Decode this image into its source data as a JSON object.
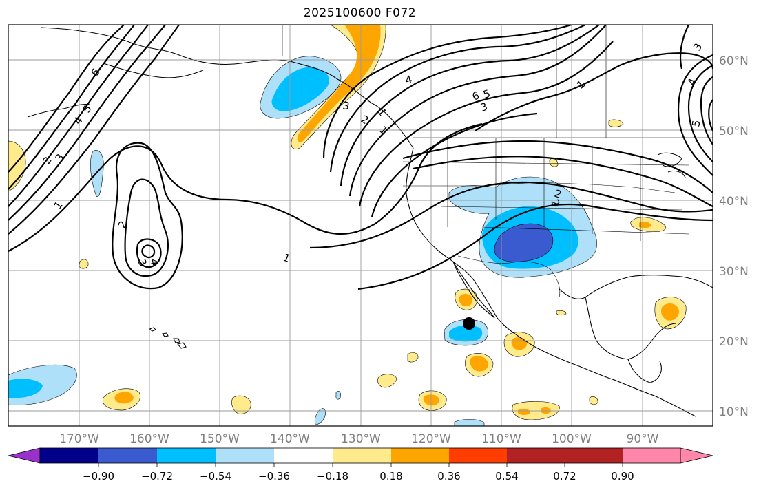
{
  "title": "2025100600 F072",
  "map": {
    "lon_labels": [
      "170°W",
      "160°W",
      "150°W",
      "140°W",
      "130°W",
      "120°W",
      "110°W",
      "100°W",
      "90°W"
    ],
    "lat_labels": [
      "10°N",
      "20°N",
      "30°N",
      "40°N",
      "50°N",
      "60°N"
    ],
    "contour_labels": [
      "6",
      "5",
      "4",
      "3",
      "2",
      "1",
      "1",
      "2",
      "3",
      "4",
      "1",
      "1",
      "2",
      "3",
      "6",
      "5",
      "4",
      "3",
      "2",
      "1",
      "2",
      "5",
      "4",
      "3"
    ],
    "marker": {
      "lon": -114.5,
      "lat": 22.5,
      "color": "#000000"
    }
  },
  "colorbar": {
    "ticks": [
      "−0.90",
      "−0.72",
      "−0.54",
      "−0.36",
      "−0.18",
      "0.18",
      "0.36",
      "0.54",
      "0.72",
      "0.90"
    ],
    "colors": [
      "#9932cc",
      "#00008b",
      "#3a5ad0",
      "#00bfff",
      "#aee0fa",
      "#ffffff",
      "#ffea8c",
      "#ffa500",
      "#ff3d00",
      "#b22222",
      "#ff88aa"
    ],
    "extend": "both"
  }
}
